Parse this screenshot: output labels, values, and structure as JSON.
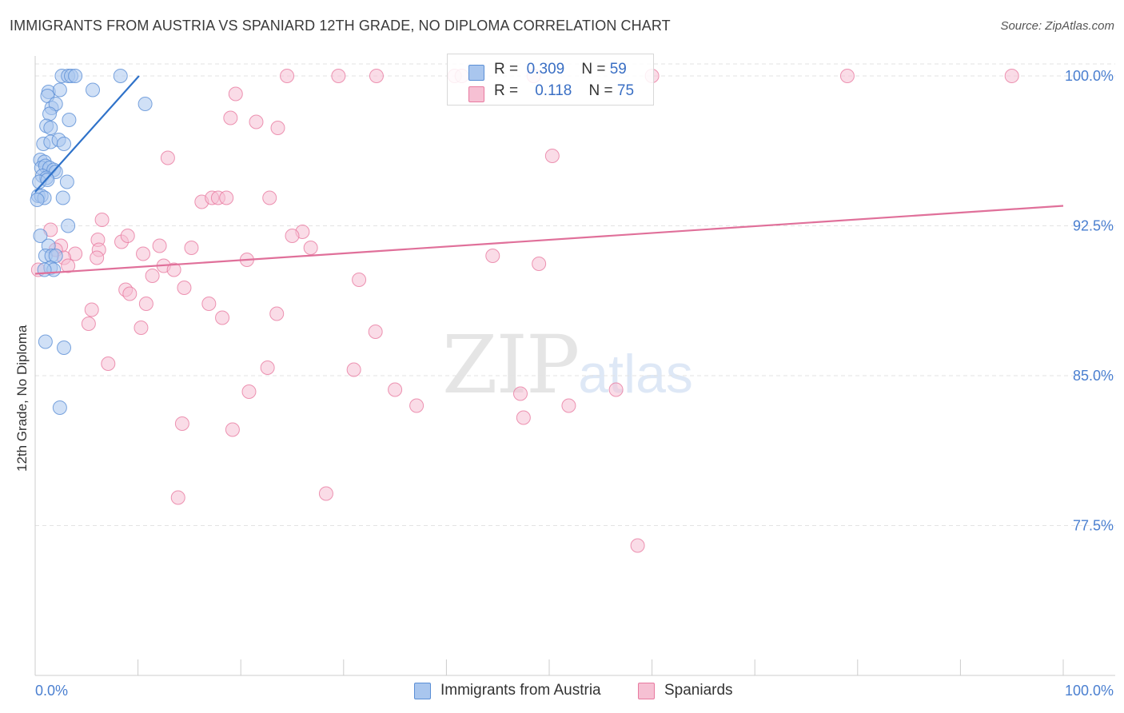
{
  "title": "IMMIGRANTS FROM AUSTRIA VS SPANIARD 12TH GRADE, NO DIPLOMA CORRELATION CHART",
  "source": "Source: ZipAtlas.com",
  "watermark": {
    "zip": "ZIP",
    "atlas": "atlas"
  },
  "colors": {
    "blue": "#5b8fd6",
    "blue_fill": "#a9c6ee",
    "blue_line": "#2f72c9",
    "pink": "#e87aa0",
    "pink_fill": "#f6c0d3",
    "pink_line": "#e0709a",
    "axis_text": "#4a7fd0",
    "grid": "#e3e3e3"
  },
  "legend": {
    "rows": [
      {
        "r_label": "R =",
        "r_value": "0.309",
        "n_label": "N =",
        "n_value": "59"
      },
      {
        "r_label": "R =",
        "r_value": "0.118",
        "n_label": "N =",
        "n_value": "75"
      }
    ]
  },
  "bottom_legend": [
    "Immigrants from Austria",
    "Spaniards"
  ],
  "chart_data": {
    "type": "scatter",
    "title": "IMMIGRANTS FROM AUSTRIA VS SPANIARD 12TH GRADE, NO DIPLOMA CORRELATION CHART",
    "xlabel": "",
    "ylabel": "12th Grade, No Diploma",
    "xlim": [
      0,
      100
    ],
    "ylim": [
      70.0,
      101.0
    ],
    "x_tick_labels": [
      "0.0%",
      "100.0%"
    ],
    "y_ticks": [
      100.0,
      92.5,
      85.0,
      77.5
    ],
    "y_tick_labels": [
      "100.0%",
      "92.5%",
      "85.0%",
      "77.5%"
    ],
    "series": [
      {
        "name": "Immigrants from Austria",
        "R": 0.309,
        "N": 59,
        "trend": {
          "x": [
            0,
            10.1
          ],
          "y": [
            94.2,
            100.0
          ]
        },
        "points": [
          [
            2.6,
            100.0
          ],
          [
            3.2,
            100.0
          ],
          [
            3.5,
            100.0
          ],
          [
            3.9,
            100.0
          ],
          [
            8.3,
            100.0
          ],
          [
            1.3,
            99.2
          ],
          [
            1.2,
            99.0
          ],
          [
            2.4,
            99.3
          ],
          [
            5.6,
            99.3
          ],
          [
            1.6,
            98.4
          ],
          [
            2.0,
            98.6
          ],
          [
            10.7,
            98.6
          ],
          [
            1.4,
            98.1
          ],
          [
            3.3,
            97.8
          ],
          [
            1.1,
            97.5
          ],
          [
            1.5,
            97.4
          ],
          [
            0.8,
            96.6
          ],
          [
            1.5,
            96.7
          ],
          [
            2.3,
            96.8
          ],
          [
            2.8,
            96.6
          ],
          [
            0.5,
            95.8
          ],
          [
            0.9,
            95.7
          ],
          [
            0.6,
            95.4
          ],
          [
            1.0,
            95.5
          ],
          [
            1.4,
            95.4
          ],
          [
            1.8,
            95.3
          ],
          [
            2.0,
            95.2
          ],
          [
            0.7,
            95.0
          ],
          [
            1.1,
            94.9
          ],
          [
            0.4,
            94.7
          ],
          [
            1.2,
            94.8
          ],
          [
            3.1,
            94.7
          ],
          [
            0.3,
            94.0
          ],
          [
            0.6,
            94.0
          ],
          [
            0.9,
            93.9
          ],
          [
            0.2,
            93.8
          ],
          [
            2.7,
            93.9
          ],
          [
            3.2,
            92.5
          ],
          [
            0.5,
            92.0
          ],
          [
            1.3,
            91.5
          ],
          [
            1.0,
            91.0
          ],
          [
            1.6,
            91.0
          ],
          [
            2.0,
            91.0
          ],
          [
            1.5,
            90.4
          ],
          [
            1.8,
            90.3
          ],
          [
            0.9,
            90.3
          ],
          [
            1.0,
            86.7
          ],
          [
            2.8,
            86.4
          ],
          [
            2.4,
            83.4
          ]
        ]
      },
      {
        "name": "Spaniards",
        "R": 0.118,
        "N": 75,
        "trend": {
          "x": [
            0,
            100
          ],
          "y": [
            90.1,
            93.5
          ]
        },
        "points": [
          [
            24.5,
            100.0
          ],
          [
            29.5,
            100.0
          ],
          [
            33.2,
            100.0
          ],
          [
            40.8,
            100.0
          ],
          [
            41.5,
            100.0
          ],
          [
            48.5,
            100.0
          ],
          [
            60.0,
            100.0
          ],
          [
            79.0,
            100.0
          ],
          [
            95.0,
            100.0
          ],
          [
            19.5,
            99.1
          ],
          [
            19.0,
            97.9
          ],
          [
            21.5,
            97.7
          ],
          [
            23.6,
            97.4
          ],
          [
            12.9,
            95.9
          ],
          [
            50.3,
            96.0
          ],
          [
            16.2,
            93.7
          ],
          [
            17.2,
            93.9
          ],
          [
            17.8,
            93.9
          ],
          [
            18.6,
            93.9
          ],
          [
            22.8,
            93.9
          ],
          [
            6.5,
            92.8
          ],
          [
            1.5,
            92.3
          ],
          [
            26.0,
            92.2
          ],
          [
            25.0,
            92.0
          ],
          [
            2.5,
            91.5
          ],
          [
            6.1,
            91.8
          ],
          [
            8.4,
            91.7
          ],
          [
            9.0,
            92.0
          ],
          [
            2.0,
            91.3
          ],
          [
            3.9,
            91.1
          ],
          [
            6.2,
            91.3
          ],
          [
            12.1,
            91.5
          ],
          [
            15.2,
            91.4
          ],
          [
            26.8,
            91.4
          ],
          [
            2.8,
            90.9
          ],
          [
            6.0,
            90.9
          ],
          [
            10.5,
            91.1
          ],
          [
            20.6,
            90.8
          ],
          [
            44.5,
            91.0
          ],
          [
            49.0,
            90.6
          ],
          [
            3.2,
            90.5
          ],
          [
            12.5,
            90.5
          ],
          [
            13.5,
            90.3
          ],
          [
            11.4,
            90.0
          ],
          [
            0.3,
            90.3
          ],
          [
            31.5,
            89.8
          ],
          [
            8.8,
            89.3
          ],
          [
            9.2,
            89.1
          ],
          [
            14.5,
            89.4
          ],
          [
            10.8,
            88.6
          ],
          [
            16.9,
            88.6
          ],
          [
            5.5,
            88.3
          ],
          [
            18.2,
            87.9
          ],
          [
            23.5,
            88.1
          ],
          [
            5.2,
            87.6
          ],
          [
            10.3,
            87.4
          ],
          [
            33.1,
            87.2
          ],
          [
            7.1,
            85.6
          ],
          [
            22.6,
            85.4
          ],
          [
            31.0,
            85.3
          ],
          [
            20.8,
            84.2
          ],
          [
            35.0,
            84.3
          ],
          [
            47.2,
            84.1
          ],
          [
            56.5,
            84.3
          ],
          [
            37.1,
            83.5
          ],
          [
            51.9,
            83.5
          ],
          [
            47.5,
            82.9
          ],
          [
            14.3,
            82.6
          ],
          [
            19.2,
            82.3
          ],
          [
            28.3,
            79.1
          ],
          [
            13.9,
            78.9
          ],
          [
            58.6,
            76.5
          ]
        ]
      }
    ]
  }
}
